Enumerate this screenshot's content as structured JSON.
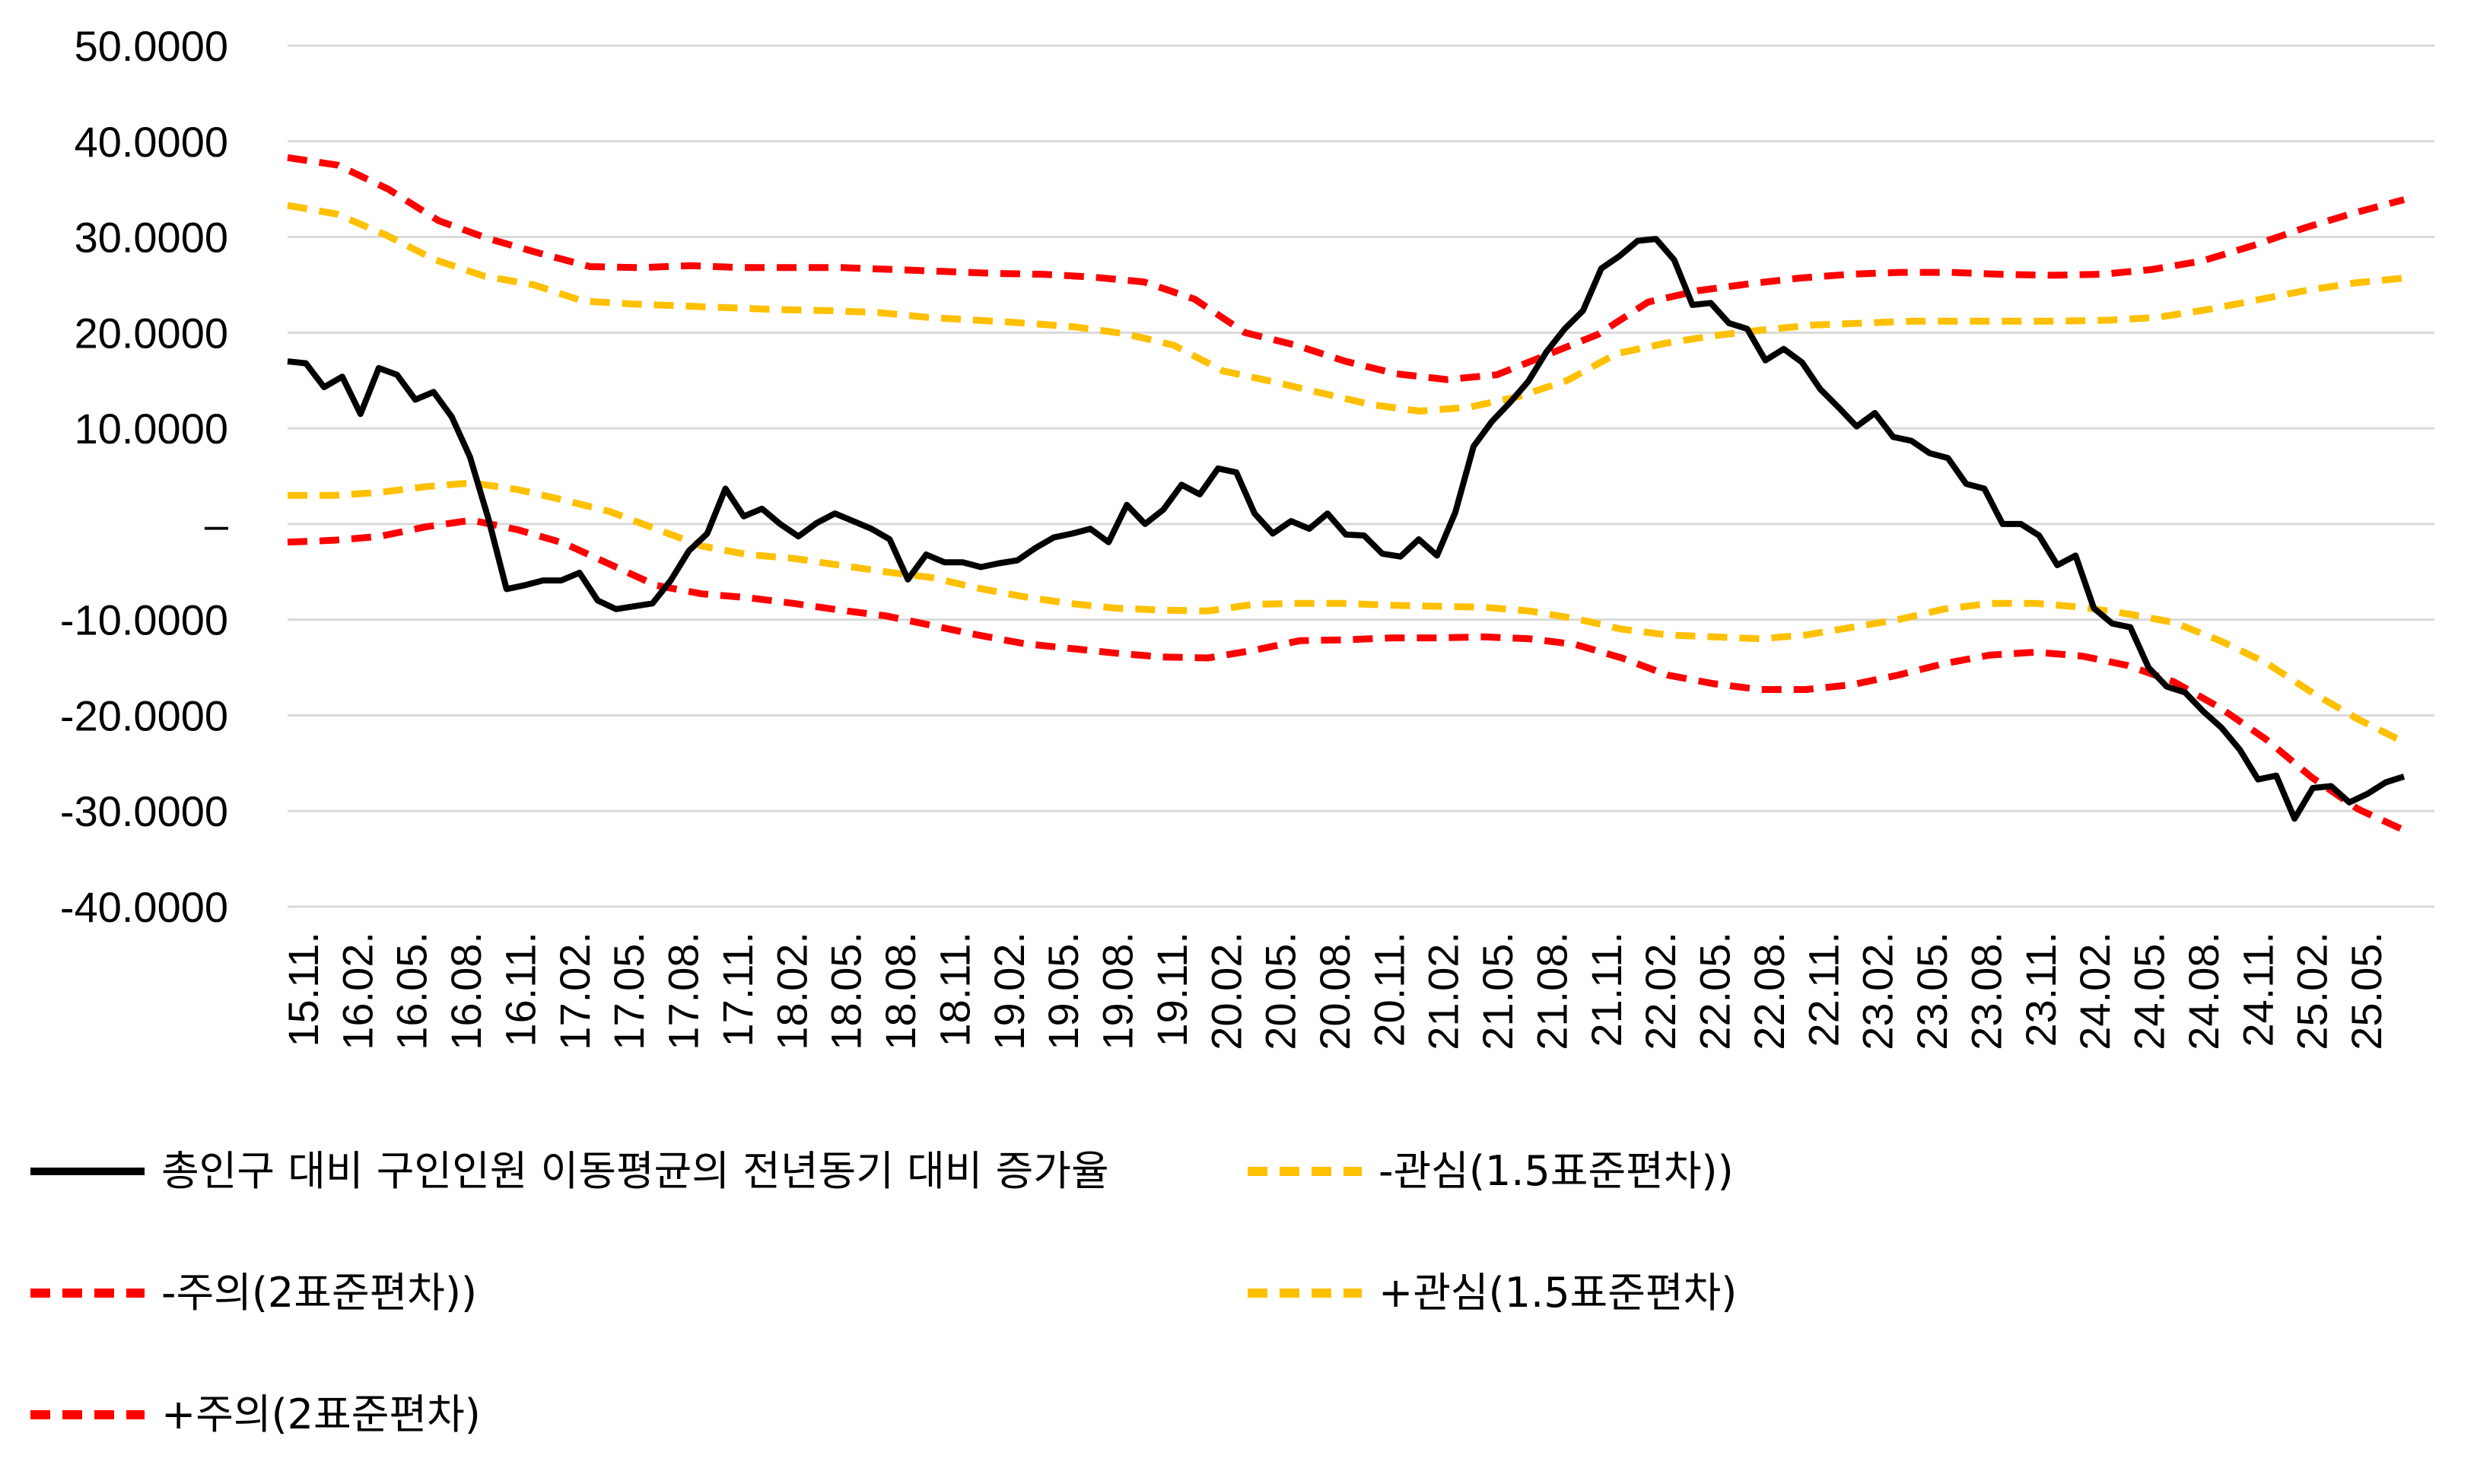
{
  "chart_data": {
    "type": "line",
    "title": "",
    "xlabel": "",
    "ylabel": "",
    "ylim": [
      -40,
      50
    ],
    "y_ticks": [
      {
        "value": 50,
        "label": "50.0000"
      },
      {
        "value": 40,
        "label": "40.0000"
      },
      {
        "value": 30,
        "label": "30.0000"
      },
      {
        "value": 20,
        "label": "20.0000"
      },
      {
        "value": 10,
        "label": "10.0000"
      },
      {
        "value": 0,
        "label": "–"
      },
      {
        "value": -10,
        "label": "-10.0000"
      },
      {
        "value": -20,
        "label": "-20.0000"
      },
      {
        "value": -30,
        "label": "-30.0000"
      },
      {
        "value": -40,
        "label": "-40.0000"
      }
    ],
    "x_ticks": [
      "15.11.",
      "16.02.",
      "16.05.",
      "16.08.",
      "16.11.",
      "17.02.",
      "17.05.",
      "17.08.",
      "17.11.",
      "18.02.",
      "18.05.",
      "18.08.",
      "18.11.",
      "19.02.",
      "19.05.",
      "19.08.",
      "19.11.",
      "20.02.",
      "20.05.",
      "20.08.",
      "20.11.",
      "21.02.",
      "21.05.",
      "21.08.",
      "21.11.",
      "22.02.",
      "22.05.",
      "22.08.",
      "22.11.",
      "23.02.",
      "23.05.",
      "23.08.",
      "23.11.",
      "24.02.",
      "24.05.",
      "24.08.",
      "24.11.",
      "25.02.",
      "25.05."
    ],
    "grid": true,
    "legend_position": "bottom",
    "colors": {
      "main": "#000000",
      "caution": "#FFC000",
      "warning": "#FF0000",
      "grid": "#D9D9D9"
    },
    "series": [
      {
        "name": "총인구 대비 구인인원 이동평균의 전년동기 대비 증가율",
        "color": "#000000",
        "style": "solid",
        "values": [
          17.0,
          16.8,
          14.3,
          15.4,
          11.5,
          16.3,
          15.6,
          13.0,
          13.8,
          11.2,
          7.0,
          0.6,
          -6.8,
          -6.4,
          -5.9,
          -5.9,
          -5.1,
          -8.0,
          -8.9,
          -8.6,
          -8.3,
          -5.9,
          -2.8,
          -1.0,
          3.7,
          0.8,
          1.6,
          0.0,
          -1.3,
          0.1,
          1.1,
          0.3,
          -0.5,
          -1.6,
          -5.8,
          -3.2,
          -4.0,
          -4.0,
          -4.5,
          -4.1,
          -3.8,
          -2.5,
          -1.4,
          -1.0,
          -0.5,
          -1.9,
          2.0,
          0.0,
          1.5,
          4.1,
          3.1,
          5.8,
          5.4,
          1.1,
          -1.0,
          0.3,
          -0.5,
          1.1,
          -1.1,
          -1.2,
          -3.1,
          -3.4,
          -1.6,
          -3.3,
          1.2,
          8.1,
          10.7,
          12.7,
          14.9,
          18.0,
          20.4,
          22.3,
          26.7,
          28.0,
          29.6,
          29.8,
          27.6,
          22.9,
          23.1,
          21.0,
          20.4,
          17.1,
          18.3,
          16.9,
          14.1,
          12.2,
          10.2,
          11.6,
          9.1,
          8.7,
          7.4,
          6.9,
          4.2,
          3.7,
          0.0,
          0.0,
          -1.2,
          -4.3,
          -3.3,
          -8.8,
          -10.4,
          -10.8,
          -15.0,
          -17.0,
          -17.6,
          -19.6,
          -21.3,
          -23.6,
          -26.7,
          -26.3,
          -30.8,
          -27.6,
          -27.4,
          -29.1,
          -28.2,
          -27.0,
          -26.4
        ]
      },
      {
        "name": "-관심(1.5표준편차))",
        "color": "#FFC000",
        "style": "dashed",
        "values": [
          3.0,
          3.0,
          3.3,
          3.9,
          4.3,
          3.6,
          2.5,
          1.3,
          -0.5,
          -2.3,
          -3.2,
          -3.6,
          -4.3,
          -5.0,
          -5.6,
          -6.7,
          -7.6,
          -8.3,
          -8.8,
          -9.0,
          -9.1,
          -8.4,
          -8.3,
          -8.3,
          -8.5,
          -8.6,
          -8.7,
          -9.1,
          -9.9,
          -11.0,
          -11.6,
          -11.8,
          -12.0,
          -11.6,
          -10.8,
          -10.0,
          -8.9,
          -8.3,
          -8.3,
          -8.7,
          -9.4,
          -10.3,
          -12.2,
          -14.5,
          -17.6,
          -20.4,
          -22.8
        ]
      },
      {
        "name": "-주의(2표준편차))",
        "color": "#FF0000",
        "style": "dashed",
        "values": [
          -1.9,
          -1.7,
          -1.3,
          -0.3,
          0.4,
          -0.6,
          -2.0,
          -4.2,
          -6.4,
          -7.3,
          -7.7,
          -8.3,
          -9.0,
          -9.6,
          -10.6,
          -11.6,
          -12.5,
          -13.0,
          -13.5,
          -13.9,
          -14.0,
          -13.2,
          -12.2,
          -12.1,
          -11.9,
          -11.9,
          -11.8,
          -12.0,
          -12.6,
          -14.0,
          -15.8,
          -16.7,
          -17.3,
          -17.3,
          -16.8,
          -15.8,
          -14.6,
          -13.7,
          -13.4,
          -13.8,
          -14.8,
          -16.5,
          -19.2,
          -22.5,
          -26.5,
          -29.8,
          -32.0
        ]
      },
      {
        "name": "+관심(1.5표준편차)",
        "color": "#FFC000",
        "style": "dashed",
        "values": [
          33.3,
          32.4,
          30.2,
          27.6,
          25.9,
          25.0,
          23.3,
          23.0,
          22.8,
          22.6,
          22.4,
          22.3,
          22.1,
          21.6,
          21.3,
          21.0,
          20.6,
          19.9,
          18.7,
          16.0,
          14.9,
          13.7,
          12.5,
          11.8,
          12.2,
          13.3,
          15.0,
          17.8,
          18.9,
          19.7,
          20.3,
          20.8,
          21.0,
          21.2,
          21.2,
          21.2,
          21.2,
          21.3,
          21.6,
          22.4,
          23.4,
          24.4,
          25.2,
          25.7
        ]
      },
      {
        "name": "+주의(2표준편차)",
        "color": "#FF0000",
        "style": "dashed",
        "values": [
          38.3,
          37.5,
          35.0,
          31.7,
          29.8,
          28.3,
          26.9,
          26.8,
          27.0,
          26.8,
          26.8,
          26.8,
          26.6,
          26.4,
          26.2,
          26.1,
          25.8,
          25.3,
          23.5,
          20.0,
          18.7,
          17.0,
          15.7,
          15.1,
          15.6,
          17.7,
          19.8,
          23.2,
          24.4,
          25.1,
          25.7,
          26.1,
          26.3,
          26.3,
          26.1,
          26.0,
          26.1,
          26.6,
          27.5,
          29.1,
          30.9,
          32.5,
          33.9
        ]
      }
    ]
  }
}
